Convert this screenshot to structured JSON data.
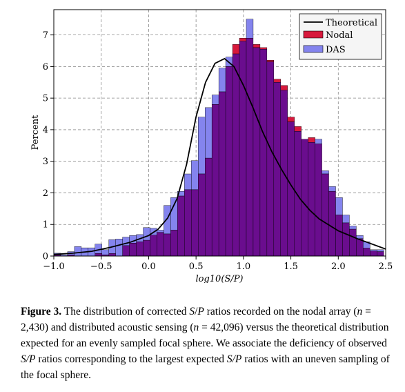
{
  "chart_data": {
    "type": "bar",
    "xlabel": "log10(S/P)",
    "ylabel": "Percent",
    "xlim": [
      -1.0,
      2.5
    ],
    "ylim": [
      0,
      7.8
    ],
    "xticks": [
      -1.0,
      -0.5,
      0.0,
      0.5,
      1.0,
      1.5,
      2.0,
      2.5
    ],
    "xtick_labels": [
      "−1.0",
      "−0.5",
      "0.0",
      "0.5",
      "1.0",
      "1.5",
      "2.0",
      "2.5"
    ],
    "yticks": [
      0,
      1,
      2,
      3,
      4,
      5,
      6,
      7
    ],
    "ytick_labels": [
      "0",
      "1",
      "2",
      "3",
      "4",
      "5",
      "6",
      "7"
    ],
    "grid": true,
    "legend_position": "top-right",
    "bin_start": -1.0,
    "bin_width": 0.0725,
    "series": [
      {
        "name": "Nodal",
        "color": "#d7193c",
        "values": [
          0.04,
          0,
          0.04,
          0,
          0,
          0,
          0.08,
          0.04,
          0.08,
          0,
          0.33,
          0.41,
          0.45,
          0.5,
          0.66,
          0.75,
          0.7,
          0.82,
          1.9,
          2.1,
          2.1,
          2.6,
          3.1,
          4.8,
          5.2,
          6.0,
          6.7,
          6.9,
          6.9,
          6.7,
          6.6,
          6.2,
          5.6,
          5.4,
          4.4,
          4.1,
          3.7,
          3.75,
          3.55,
          2.6,
          2.05,
          1.3,
          1.05,
          0.85,
          0.55,
          0.25,
          0.16,
          0.14
        ]
      },
      {
        "name": "DAS",
        "color": "#8484ee",
        "values": [
          0.09,
          0.04,
          0.14,
          0.3,
          0.26,
          0.26,
          0.38,
          0.2,
          0.52,
          0.54,
          0.6,
          0.65,
          0.68,
          0.9,
          0.88,
          0.82,
          1.6,
          1.85,
          2.05,
          2.6,
          3.02,
          4.4,
          4.7,
          5.1,
          5.95,
          6.3,
          6.4,
          6.8,
          7.5,
          6.6,
          6.55,
          6.15,
          5.5,
          5.25,
          4.25,
          3.95,
          3.7,
          3.6,
          3.7,
          2.7,
          2.2,
          1.85,
          1.3,
          0.95,
          0.65,
          0.45,
          0.2,
          0.2
        ]
      },
      {
        "name": "Theoretical",
        "color": "#000000",
        "kind": "line",
        "x": [
          -1.0,
          -0.8,
          -0.6,
          -0.4,
          -0.2,
          0.0,
          0.1,
          0.2,
          0.3,
          0.4,
          0.5,
          0.6,
          0.7,
          0.8,
          0.9,
          1.0,
          1.1,
          1.2,
          1.3,
          1.4,
          1.5,
          1.6,
          1.7,
          1.8,
          2.0,
          2.2,
          2.5
        ],
        "values": [
          0.05,
          0.09,
          0.15,
          0.28,
          0.43,
          0.65,
          0.85,
          1.2,
          1.82,
          2.9,
          4.4,
          5.5,
          6.1,
          6.25,
          6.0,
          5.4,
          4.7,
          3.95,
          3.3,
          2.75,
          2.25,
          1.8,
          1.45,
          1.17,
          0.8,
          0.55,
          0.22
        ]
      }
    ]
  },
  "caption": {
    "label": "Figure 3.",
    "p1": "  The distribution of corrected ",
    "sp1": "S",
    "s1": "/",
    "sp1b": "P",
    "p2": " ratios recorded on the nodal array (",
    "n1": "n",
    "p3": " = 2,430) and distributed acoustic sensing (",
    "n2": "n",
    "p4": " = 42,096) versus the theoretical distribution expected for an evenly sampled focal sphere. We associate the deficiency of observed ",
    "sp2": "S/P",
    "p5": " ratios corresponding to the largest expected ",
    "sp3": "S/P",
    "p6": " ratios with an uneven sampling of the focal sphere."
  }
}
